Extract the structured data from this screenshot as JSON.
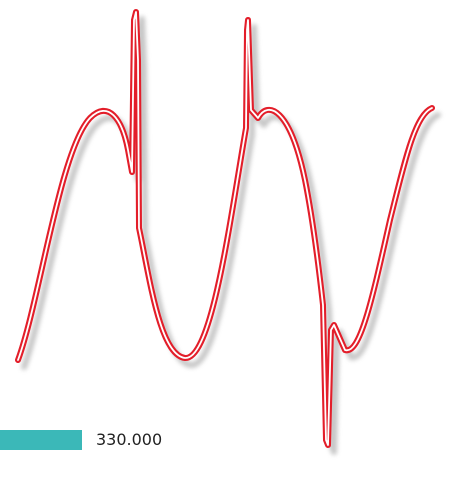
{
  "waveform": {
    "stroke_color": "#e31e2a",
    "inner_color": "#ffffff",
    "shadow_color": "#9a9a9a"
  },
  "scale_indicator": {
    "bar_color": "#3bb8b8",
    "value_text": "330.000"
  }
}
